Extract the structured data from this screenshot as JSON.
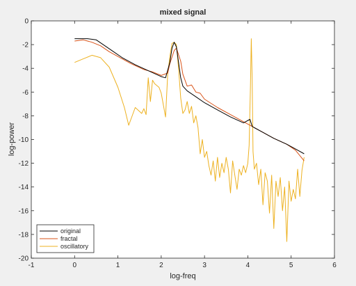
{
  "chart_data": {
    "type": "line",
    "title": "mixed signal",
    "xlabel": "log-freq",
    "ylabel": "log-power",
    "xlim": [
      -1,
      6
    ],
    "ylim": [
      -20,
      0
    ],
    "xticks": [
      -1,
      0,
      1,
      2,
      3,
      4,
      5,
      6
    ],
    "xtick_labels": [
      "-1",
      "0",
      "1",
      "2",
      "3",
      "4",
      "5",
      "6"
    ],
    "yticks": [
      -20,
      -18,
      -16,
      -14,
      -12,
      -10,
      -8,
      -6,
      -4,
      -2,
      0
    ],
    "ytick_labels": [
      "-20",
      "-18",
      "-16",
      "-14",
      "-12",
      "-10",
      "-8",
      "-6",
      "-4",
      "-2",
      "0"
    ],
    "grid": false,
    "legend_position": "bottom-left",
    "series": [
      {
        "name": "original",
        "color": "#000000",
        "x": [
          0,
          0.3,
          0.5,
          0.7,
          0.9,
          1.1,
          1.4,
          1.7,
          2.0,
          2.1,
          2.2,
          2.25,
          2.3,
          2.35,
          2.4,
          2.45,
          2.5,
          2.6,
          2.8,
          3.0,
          3.3,
          3.6,
          3.9,
          4.05,
          4.1,
          4.15,
          4.3,
          4.6,
          4.9,
          5.1,
          5.3
        ],
        "y": [
          -1.5,
          -1.5,
          -1.6,
          -2.1,
          -2.6,
          -3.1,
          -3.7,
          -4.2,
          -4.7,
          -4.8,
          -3.5,
          -2.3,
          -1.8,
          -2.2,
          -3.5,
          -4.8,
          -5.5,
          -5.9,
          -6.4,
          -6.9,
          -7.5,
          -8.1,
          -8.6,
          -8.3,
          -8.9,
          -9.0,
          -9.3,
          -9.9,
          -10.4,
          -10.8,
          -11.2
        ]
      },
      {
        "name": "fractal",
        "color": "#d95319",
        "x": [
          0,
          0.2,
          0.4,
          0.6,
          0.8,
          1.0,
          1.3,
          1.6,
          1.8,
          2.0,
          2.15,
          2.2,
          2.3,
          2.35,
          2.45,
          2.5,
          2.6,
          2.7,
          2.8,
          2.9,
          3.0,
          3.3,
          3.6,
          3.9,
          4.1,
          4.3,
          4.6,
          4.9,
          5.1,
          5.3
        ],
        "y": [
          -1.7,
          -1.6,
          -1.8,
          -2.1,
          -2.6,
          -3.0,
          -3.6,
          -4.1,
          -4.3,
          -4.6,
          -4.4,
          -3.6,
          -2.5,
          -2.3,
          -3.4,
          -4.5,
          -5.5,
          -5.4,
          -6.0,
          -6.1,
          -6.6,
          -7.3,
          -7.9,
          -8.5,
          -8.9,
          -9.3,
          -9.9,
          -10.4,
          -10.9,
          -11.8
        ]
      },
      {
        "name": "oscillatory",
        "color": "#edb120",
        "x": [
          0,
          0.2,
          0.4,
          0.6,
          0.8,
          1.0,
          1.15,
          1.25,
          1.4,
          1.55,
          1.6,
          1.65,
          1.7,
          1.75,
          1.8,
          1.85,
          1.95,
          2.0,
          2.1,
          2.15,
          2.2,
          2.25,
          2.3,
          2.35,
          2.4,
          2.45,
          2.5,
          2.55,
          2.6,
          2.65,
          2.7,
          2.75,
          2.8,
          2.85,
          2.9,
          2.95,
          3.0,
          3.05,
          3.1,
          3.15,
          3.2,
          3.25,
          3.3,
          3.35,
          3.4,
          3.45,
          3.5,
          3.55,
          3.6,
          3.65,
          3.7,
          3.75,
          3.8,
          3.85,
          3.9,
          3.95,
          4.0,
          4.03,
          4.06,
          4.08,
          4.1,
          4.12,
          4.15,
          4.2,
          4.25,
          4.3,
          4.35,
          4.4,
          4.45,
          4.5,
          4.55,
          4.6,
          4.65,
          4.7,
          4.75,
          4.8,
          4.85,
          4.9,
          4.95,
          5.0,
          5.05,
          5.1,
          5.15,
          5.2,
          5.25,
          5.3
        ],
        "y": [
          -3.5,
          -3.2,
          -2.9,
          -3.1,
          -3.9,
          -5.6,
          -7.3,
          -8.8,
          -7.3,
          -7.8,
          -7.4,
          -7.9,
          -4.8,
          -6.8,
          -5.0,
          -5.3,
          -5.6,
          -6.1,
          -8.1,
          -4.5,
          -3.0,
          -1.9,
          -1.8,
          -2.0,
          -4.0,
          -6.5,
          -7.8,
          -7.5,
          -6.8,
          -7.8,
          -7.2,
          -8.6,
          -8.0,
          -9.0,
          -11.2,
          -10.0,
          -11.5,
          -11.0,
          -12.2,
          -13.0,
          -11.8,
          -13.5,
          -11.5,
          -13.2,
          -12.0,
          -12.8,
          -11.5,
          -12.5,
          -14.5,
          -11.8,
          -13.0,
          -14.2,
          -12.5,
          -13.0,
          -12.2,
          -12.8,
          -12.0,
          -10.5,
          -5.5,
          -1.5,
          -5.0,
          -11.0,
          -12.5,
          -12.0,
          -13.8,
          -12.5,
          -15.5,
          -12.8,
          -13.5,
          -16.2,
          -13.0,
          -17.5,
          -13.5,
          -14.8,
          -13.2,
          -16.0,
          -14.0,
          -18.6,
          -13.5,
          -15.2,
          -14.2,
          -15.0,
          -12.5,
          -14.8,
          -12.6,
          -11.5
        ]
      }
    ]
  }
}
